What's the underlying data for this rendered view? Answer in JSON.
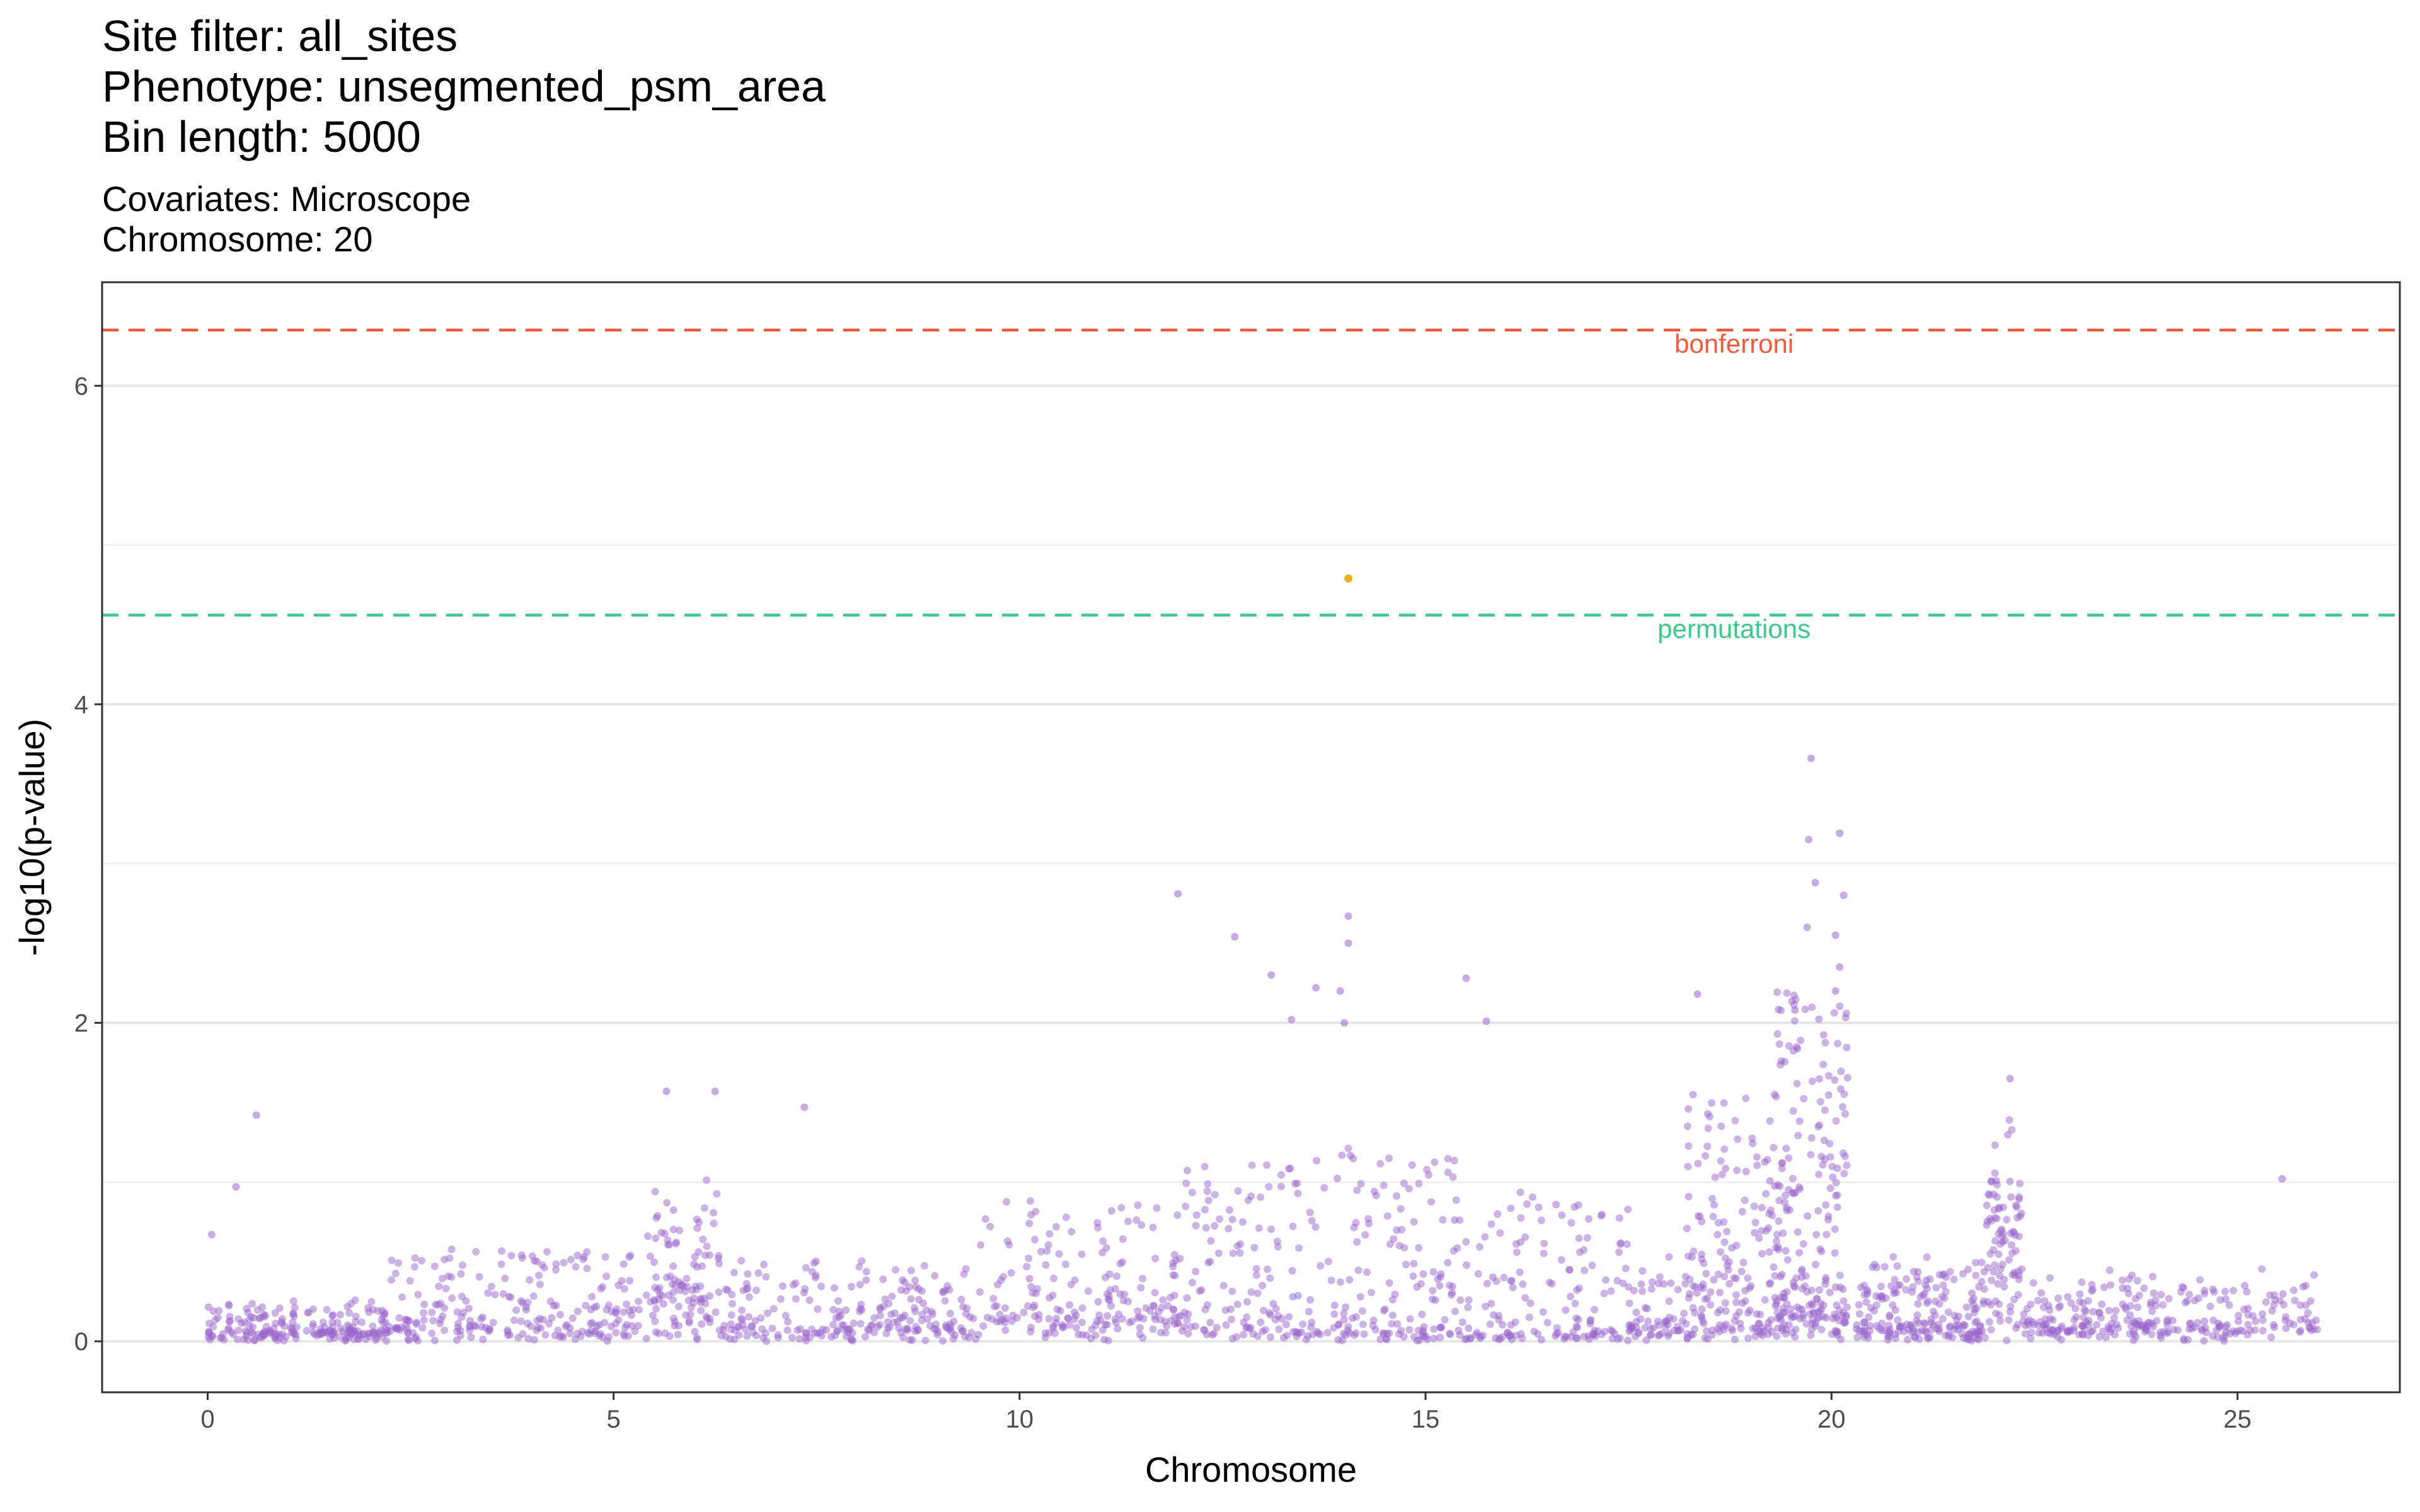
{
  "header": {
    "title_lines": [
      "Site filter: all_sites",
      "Phenotype: unsegmented_psm_area",
      "Bin length: 5000"
    ],
    "subtitle_lines": [
      "Covariates: Microscope",
      "Chromosome: 20"
    ]
  },
  "chart_data": {
    "type": "scatter",
    "xlabel": "Chromosome",
    "ylabel": "-log10(p-value)",
    "xlim": [
      -1.3,
      27.0
    ],
    "ylim": [
      -0.32,
      6.65
    ],
    "xticks": [
      0,
      5,
      10,
      15,
      20,
      25
    ],
    "yticks": [
      0,
      2,
      4,
      6
    ],
    "yminor": [
      1,
      3,
      5
    ],
    "grid": true,
    "point_color": "#9966CC",
    "significant_color": "#E6AB02",
    "thresholds": [
      {
        "name": "bonferroni",
        "value": 6.35,
        "color": "#F05A3C",
        "label_x": 18.8
      },
      {
        "name": "permutations",
        "value": 4.56,
        "color": "#3CC88C",
        "label_x": 18.8
      }
    ],
    "significant_points": [
      {
        "x": 14.05,
        "y": 4.79
      }
    ],
    "notable_points": [
      {
        "x": 19.75,
        "y": 3.66
      },
      {
        "x": 20.1,
        "y": 3.19
      },
      {
        "x": 19.72,
        "y": 3.15
      },
      {
        "x": 19.8,
        "y": 2.88
      },
      {
        "x": 11.95,
        "y": 2.81
      },
      {
        "x": 20.15,
        "y": 2.8
      },
      {
        "x": 14.05,
        "y": 2.67
      },
      {
        "x": 19.7,
        "y": 2.6
      },
      {
        "x": 20.05,
        "y": 2.55
      },
      {
        "x": 12.65,
        "y": 2.54
      },
      {
        "x": 14.05,
        "y": 2.5
      },
      {
        "x": 20.1,
        "y": 2.35
      },
      {
        "x": 13.1,
        "y": 2.3
      },
      {
        "x": 15.5,
        "y": 2.28
      },
      {
        "x": 13.95,
        "y": 2.2
      },
      {
        "x": 13.65,
        "y": 2.22
      },
      {
        "x": 18.35,
        "y": 2.18
      },
      {
        "x": 20.05,
        "y": 2.2
      },
      {
        "x": 13.35,
        "y": 2.02
      },
      {
        "x": 14.0,
        "y": 2.0
      },
      {
        "x": 15.75,
        "y": 2.01
      },
      {
        "x": 19.55,
        "y": 2.08
      },
      {
        "x": 22.2,
        "y": 1.65
      },
      {
        "x": 0.6,
        "y": 1.42
      },
      {
        "x": 5.65,
        "y": 1.57
      },
      {
        "x": 6.25,
        "y": 1.57
      },
      {
        "x": 7.35,
        "y": 1.47
      },
      {
        "x": 0.05,
        "y": 0.67
      },
      {
        "x": 0.35,
        "y": 0.97
      },
      {
        "x": 25.55,
        "y": 1.02
      }
    ],
    "clusters": [
      {
        "x0": 0.0,
        "x1": 2.2,
        "base": 0.05,
        "spread": 0.22,
        "n": 200
      },
      {
        "x0": 2.2,
        "x1": 5.4,
        "base": 0.1,
        "spread": 0.55,
        "n": 230
      },
      {
        "x0": 5.4,
        "x1": 6.3,
        "base": 0.3,
        "spread": 0.75,
        "n": 110
      },
      {
        "x0": 6.3,
        "x1": 9.5,
        "base": 0.08,
        "spread": 0.45,
        "n": 230
      },
      {
        "x0": 9.5,
        "x1": 12.0,
        "base": 0.15,
        "spread": 0.75,
        "n": 190
      },
      {
        "x0": 12.0,
        "x1": 13.8,
        "base": 0.1,
        "spread": 1.1,
        "n": 140
      },
      {
        "x0": 13.8,
        "x1": 15.4,
        "base": 0.05,
        "spread": 1.2,
        "n": 140
      },
      {
        "x0": 15.4,
        "x1": 17.5,
        "base": 0.05,
        "spread": 0.9,
        "n": 150
      },
      {
        "x0": 17.5,
        "x1": 18.2,
        "base": 0.1,
        "spread": 0.45,
        "n": 60
      },
      {
        "x0": 18.2,
        "x1": 19.3,
        "base": 0.1,
        "spread": 1.55,
        "n": 170
      },
      {
        "x0": 19.3,
        "x1": 20.2,
        "base": 0.2,
        "spread": 2.1,
        "n": 230
      },
      {
        "x0": 20.3,
        "x1": 21.9,
        "base": 0.1,
        "spread": 0.45,
        "n": 200
      },
      {
        "x0": 21.9,
        "x1": 22.35,
        "base": 0.8,
        "spread": 0.65,
        "n": 90
      },
      {
        "x0": 22.35,
        "x1": 26.0,
        "base": 0.12,
        "spread": 0.35,
        "n": 280
      }
    ]
  }
}
